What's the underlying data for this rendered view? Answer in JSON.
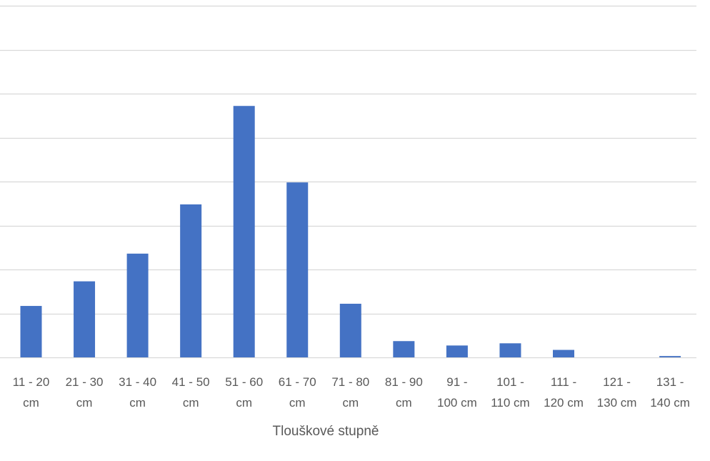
{
  "chart_data": {
    "type": "bar",
    "title": "",
    "xlabel": "Tlouškové stupně",
    "ylabel": "",
    "categories": [
      "11 - 20 cm",
      "21 - 30 cm",
      "31 - 40 cm",
      "41 - 50 cm",
      "51 - 60 cm",
      "61 - 70 cm",
      "71 - 80 cm",
      "81 - 90 cm",
      "91 - 100 cm",
      "101 - 110 cm",
      "111 - 120 cm",
      "121 - 130 cm",
      "131 - 140 cm"
    ],
    "category_label_lines": [
      [
        "11 - 20",
        "cm"
      ],
      [
        "21 - 30",
        "cm"
      ],
      [
        "31 - 40",
        "cm"
      ],
      [
        "41 - 50",
        "cm"
      ],
      [
        "51 - 60",
        "cm"
      ],
      [
        "61 - 70",
        "cm"
      ],
      [
        "71 - 80",
        "cm"
      ],
      [
        "81 - 90",
        "cm"
      ],
      [
        "91 -",
        "100 cm"
      ],
      [
        "101 -",
        "110 cm"
      ],
      [
        "111 -",
        "120 cm"
      ],
      [
        "121 -",
        "130 cm"
      ],
      [
        "131 -",
        "140 cm"
      ]
    ],
    "series": [
      {
        "values": [
          1.17,
          1.73,
          2.36,
          3.48,
          5.72,
          3.98,
          1.22,
          0.37,
          0.27,
          0.32,
          0.17,
          0.0,
          0.03
        ]
      }
    ],
    "ylim": [
      0,
      8
    ],
    "yticks": [
      0,
      1,
      2,
      3,
      4,
      5,
      6,
      7,
      8
    ],
    "ytick_labels_visible": false,
    "grid": true,
    "legend": "none",
    "bar_color": "#4472C4",
    "grid_color": "#D9D9D9",
    "text_color": "#595959"
  }
}
